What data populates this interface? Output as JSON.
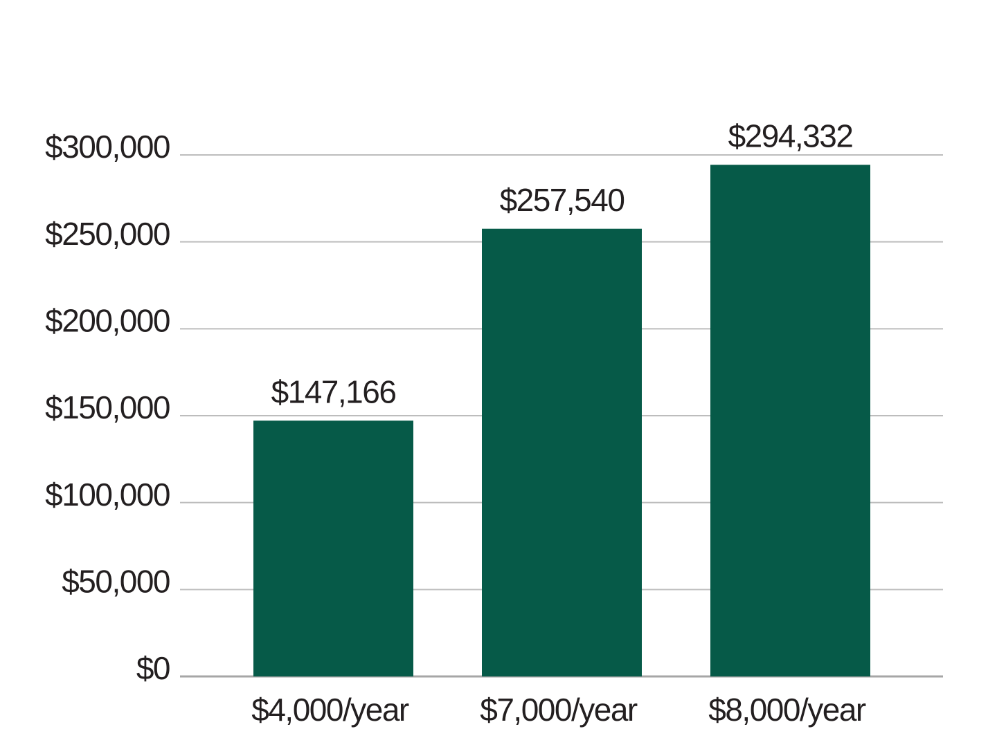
{
  "chart_data": {
    "type": "bar",
    "categories": [
      "$4,000/year",
      "$7,000/year",
      "$8,000/year"
    ],
    "values": [
      147166,
      257540,
      294332
    ],
    "value_labels": [
      "$147,166",
      "$257,540",
      "$294,332"
    ],
    "color": "#065a48",
    "ylim": [
      0,
      300000
    ],
    "yticks": [
      {
        "value": 0,
        "label": "$0"
      },
      {
        "value": 50000,
        "label": "$50,000"
      },
      {
        "value": 100000,
        "label": "$100,000"
      },
      {
        "value": 150000,
        "label": "$150,000"
      },
      {
        "value": 200000,
        "label": "$200,000"
      },
      {
        "value": 250000,
        "label": "$250,000"
      },
      {
        "value": 300000,
        "label": "$300,000"
      }
    ],
    "grid": true
  }
}
